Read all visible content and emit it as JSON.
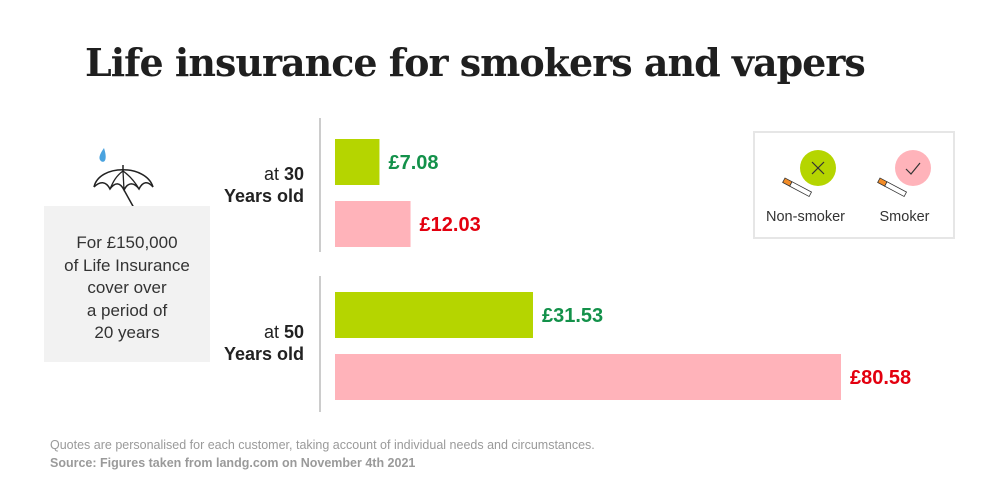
{
  "title": "Life insurance for smokers and vapers",
  "info": {
    "icon": "umbrella-icon",
    "lines": [
      "For £150,000",
      "of Life Insurance",
      "cover over",
      "a period of",
      "20 years"
    ]
  },
  "groups": [
    {
      "prefix": "at ",
      "age": "30",
      "suffix": "Years old"
    },
    {
      "prefix": "at ",
      "age": "50",
      "suffix": "Years old"
    }
  ],
  "legend": {
    "non_smoker": {
      "label": "Non-smoker",
      "icon": "cigarette-cross-icon"
    },
    "smoker": {
      "label": "Smoker",
      "icon": "cigarette-check-icon"
    }
  },
  "colors": {
    "non_smoker_bar": "#b5d500",
    "smoker_bar": "#ffb3ba",
    "non_smoker_text": "#13914a",
    "smoker_text": "#e3000f",
    "axis": "#cccccc"
  },
  "chart_data": {
    "type": "bar",
    "orientation": "horizontal",
    "title": "Life insurance for smokers and vapers",
    "categories": [
      "at 30 Years old",
      "at 50 Years old"
    ],
    "series": [
      {
        "name": "Non-smoker",
        "values": [
          7.08,
          31.53
        ],
        "labels": [
          "£7.08",
          "£31.53"
        ]
      },
      {
        "name": "Smoker",
        "values": [
          12.03,
          80.58
        ],
        "labels": [
          "£12.03",
          "£80.58"
        ]
      }
    ],
    "xlim": [
      0,
      80.58
    ],
    "grid": false,
    "legend_position": "top-right"
  },
  "footnote": "Quotes are personalised for each customer, taking account of individual needs and circumstances.",
  "source": "Source: Figures taken from landg.com on November 4th 2021"
}
